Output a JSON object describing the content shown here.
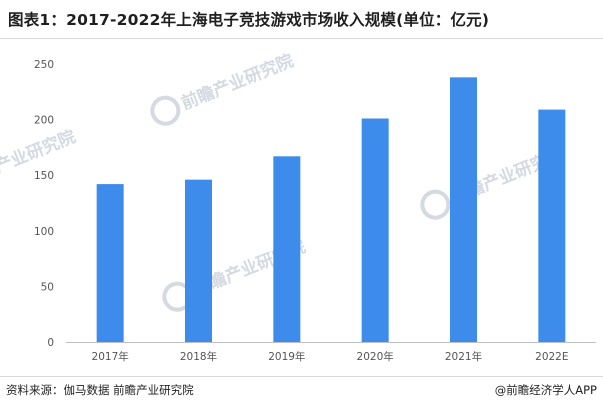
{
  "title": "图表1：2017-2022年上海电子竞技游戏市场收入规模(单位：亿元)",
  "source": "资料来源：伽马数据 前瞻产业研究院",
  "credit": "@前瞻经济学人APP",
  "watermark_text": "前瞻产业研究院",
  "colors": {
    "bar": "#3D8BEA",
    "axis": "#bfbfbf",
    "watermark": "#d4d9e2"
  },
  "chart_data": {
    "type": "bar",
    "title": "图表1：2017-2022年上海电子竞技游戏市场收入规模(单位：亿元)",
    "unit": "亿元",
    "categories": [
      "2017年",
      "2018年",
      "2019年",
      "2020年",
      "2021年",
      "2022E"
    ],
    "values": [
      142,
      146,
      167,
      201,
      238,
      209
    ],
    "ylim": [
      0,
      250
    ],
    "yticks": [
      0,
      50,
      100,
      150,
      200,
      250
    ],
    "grid": false,
    "legend": "none"
  }
}
